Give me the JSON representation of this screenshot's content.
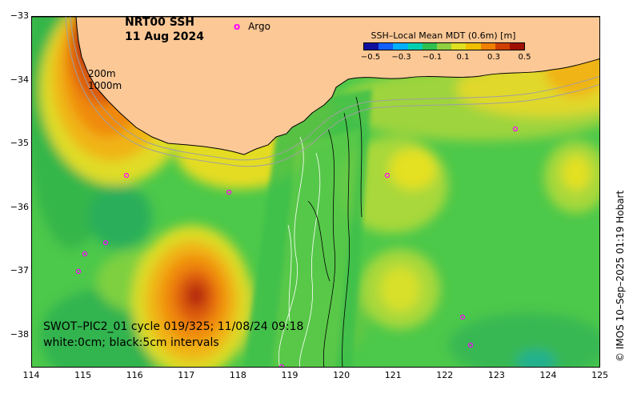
{
  "title": {
    "line1": "NRT00 SSH",
    "line2": "11 Aug 2024"
  },
  "argo_legend": {
    "symbol": "o",
    "label": "Argo",
    "color": "#ff00ff"
  },
  "colorbar": {
    "title": "SSH–Local Mean MDT (0.6m) [m]",
    "ticks": [
      "−0.5",
      "−0.3",
      "−0.1",
      "0.1",
      "0.3",
      "0.5"
    ],
    "colors": [
      "#1010a0",
      "#1060ff",
      "#00b0ff",
      "#00d0b0",
      "#30c050",
      "#90d040",
      "#e0e020",
      "#f0c000",
      "#f08000",
      "#d04000",
      "#a01000"
    ]
  },
  "bathy_labels": [
    "200m",
    "1000m"
  ],
  "swot_caption": {
    "line1": "SWOT–PIC2_01 cycle 019/325; 11/08/24 09:18",
    "line2": "white:0cm; black:5cm intervals"
  },
  "axes": {
    "y_ticks": [
      "−33",
      "−34",
      "−35",
      "−36",
      "−37",
      "−38"
    ],
    "x_ticks": [
      "114",
      "115",
      "116",
      "117",
      "118",
      "119",
      "120",
      "121",
      "122",
      "123",
      "124",
      "125"
    ]
  },
  "credit": "© IMOS 10–Sep–2025 01:19 Hobart",
  "colors": {
    "land": "#fcc896",
    "ocean_base": "#4cc84a",
    "coast": "#000000",
    "bathy": "#a0a0a0"
  }
}
